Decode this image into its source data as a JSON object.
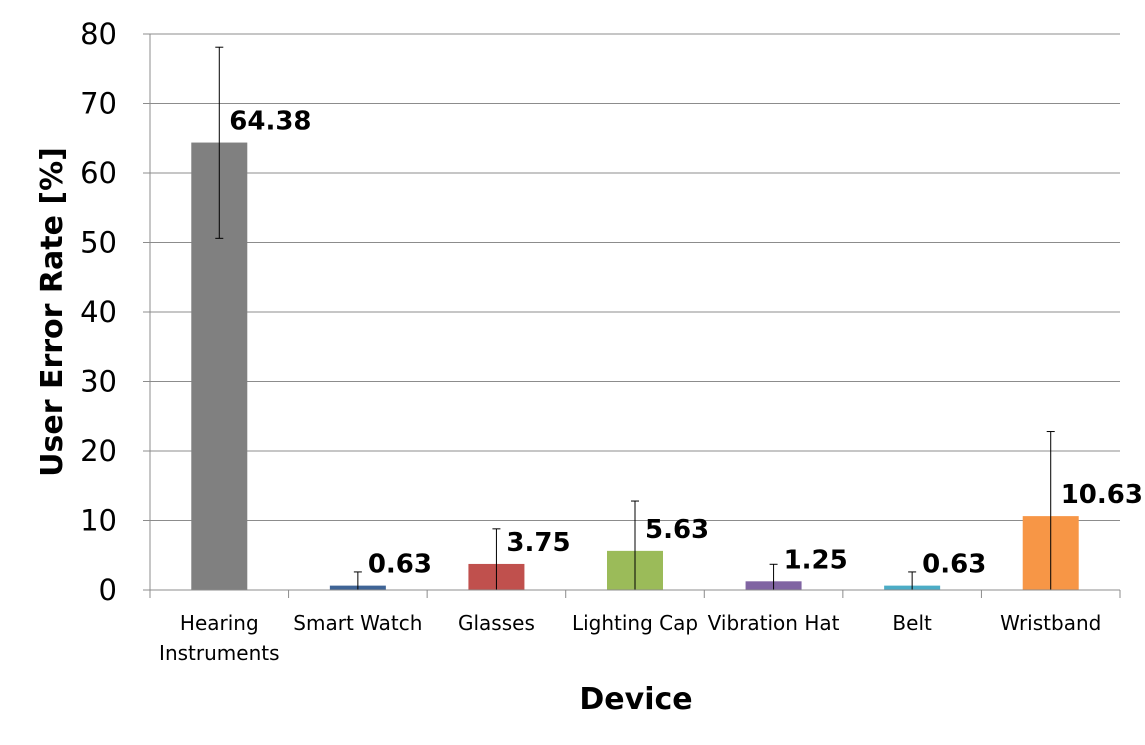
{
  "chart_data": {
    "type": "bar",
    "title": "",
    "xlabel": "Device",
    "ylabel": "User Error Rate [%]",
    "ylim": [
      0,
      80
    ],
    "yticks": [
      0,
      10,
      20,
      30,
      40,
      50,
      60,
      70,
      80
    ],
    "grid": true,
    "legend": "none",
    "categories": [
      [
        "Hearing",
        "Instruments"
      ],
      [
        "Smart Watch"
      ],
      [
        "Glasses"
      ],
      [
        "Lighting Cap"
      ],
      [
        "Vibration Hat"
      ],
      [
        "Belt"
      ],
      [
        "Wristband"
      ]
    ],
    "values": [
      64.38,
      0.63,
      3.75,
      5.63,
      1.25,
      0.63,
      10.63
    ],
    "data_labels": [
      "64.38",
      "0.63",
      "3.75",
      "5.63",
      "1.25",
      "0.63",
      "10.63"
    ],
    "error_low": [
      50.6,
      0.0,
      0.0,
      0.0,
      0.0,
      0.0,
      0.0
    ],
    "error_high": [
      78.1,
      2.6,
      8.8,
      12.8,
      3.7,
      2.6,
      22.8
    ],
    "colors": [
      "#808080",
      "#3F6496",
      "#C0504D",
      "#9BBB59",
      "#8064A2",
      "#4BACC6",
      "#F79646"
    ]
  }
}
